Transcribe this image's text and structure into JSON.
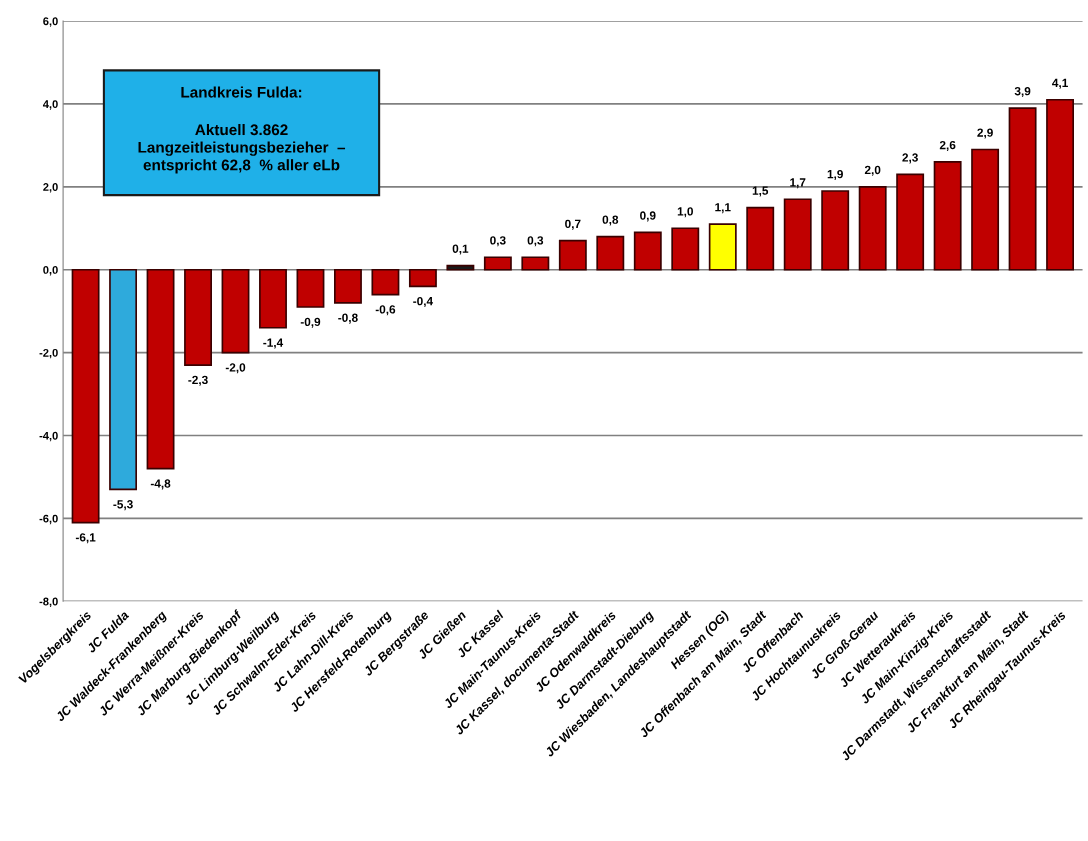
{
  "chart_data": {
    "type": "bar",
    "categories": [
      "Vogelsbergkreis",
      "JC Fulda",
      "JC Waldeck-Frankenberg",
      "JC Werra-Meißner-Kreis",
      "JC Marburg-Biedenkopf",
      "JC Limburg-Weilburg",
      "JC Schwalm-Eder-Kreis",
      "JC Lahn-Dill-Kreis",
      "JC Hersfeld-Rotenburg",
      "JC Bergstraße",
      "JC Gießen",
      "JC Kassel",
      "JC Main-Taunus-Kreis",
      "JC Kassel, documenta-Stadt",
      "JC Odenwaldkreis",
      "JC Darmstadt-Dieburg",
      "JC Wiesbaden, Landeshauptstadt",
      "Hessen (OG)",
      "JC Offenbach am Main, Stadt",
      "JC Offenbach",
      "JC Hochtaunuskreis",
      "JC Groß-Gerau",
      "JC Wetteraukreis",
      "JC Main-Kinzig-Kreis",
      "JC Darmstadt, Wissenschaftsstadt",
      "JC Frankfurt am Main, Stadt",
      "JC Rheingau-Taunus-Kreis"
    ],
    "values": [
      -6.1,
      -5.3,
      -4.8,
      -2.3,
      -2.0,
      -1.4,
      -0.9,
      -0.8,
      -0.6,
      -0.4,
      0.1,
      0.3,
      0.3,
      0.7,
      0.8,
      0.9,
      1.0,
      1.1,
      1.5,
      1.7,
      1.9,
      2.0,
      2.3,
      2.6,
      2.9,
      3.9,
      4.1
    ],
    "value_labels": [
      "-6,1",
      "-5,3",
      "-4,8",
      "-2,3",
      "-2,0",
      "-1,4",
      "-0,9",
      "-0,8",
      "-0,6",
      "-0,4",
      "0,1",
      "0,3",
      "0,3",
      "0,7",
      "0,8",
      "0,9",
      "1,0",
      "1,1",
      "1,5",
      "1,7",
      "1,9",
      "2,0",
      "2,3",
      "2,6",
      "2,9",
      "3,9",
      "4,1"
    ],
    "colors": [
      "#c00000",
      "#2eaadc",
      "#c00000",
      "#c00000",
      "#c00000",
      "#c00000",
      "#c00000",
      "#c00000",
      "#c00000",
      "#c00000",
      "#1a1a1a",
      "#c00000",
      "#c00000",
      "#c00000",
      "#c00000",
      "#c00000",
      "#c00000",
      "#ffff00",
      "#c00000",
      "#c00000",
      "#c00000",
      "#c00000",
      "#c00000",
      "#c00000",
      "#c00000",
      "#c00000",
      "#c00000"
    ],
    "ylim": [
      -8,
      6
    ],
    "yticks": [
      {
        "value": -8,
        "label": "-8,0"
      },
      {
        "value": -6,
        "label": "-6,0"
      },
      {
        "value": -4,
        "label": "-4,0"
      },
      {
        "value": -2,
        "label": "-2,0"
      },
      {
        "value": 0,
        "label": "0,0"
      },
      {
        "value": 2,
        "label": "2,0"
      },
      {
        "value": 4,
        "label": "4,0"
      },
      {
        "value": 6,
        "label": "6,0"
      }
    ],
    "grid": "y",
    "annotations": [
      "Landkreis Fulda:",
      "Aktuell 3.862\nLangzeitleistungsbezieher  –\nentspricht 62,8  % aller eLb"
    ]
  }
}
